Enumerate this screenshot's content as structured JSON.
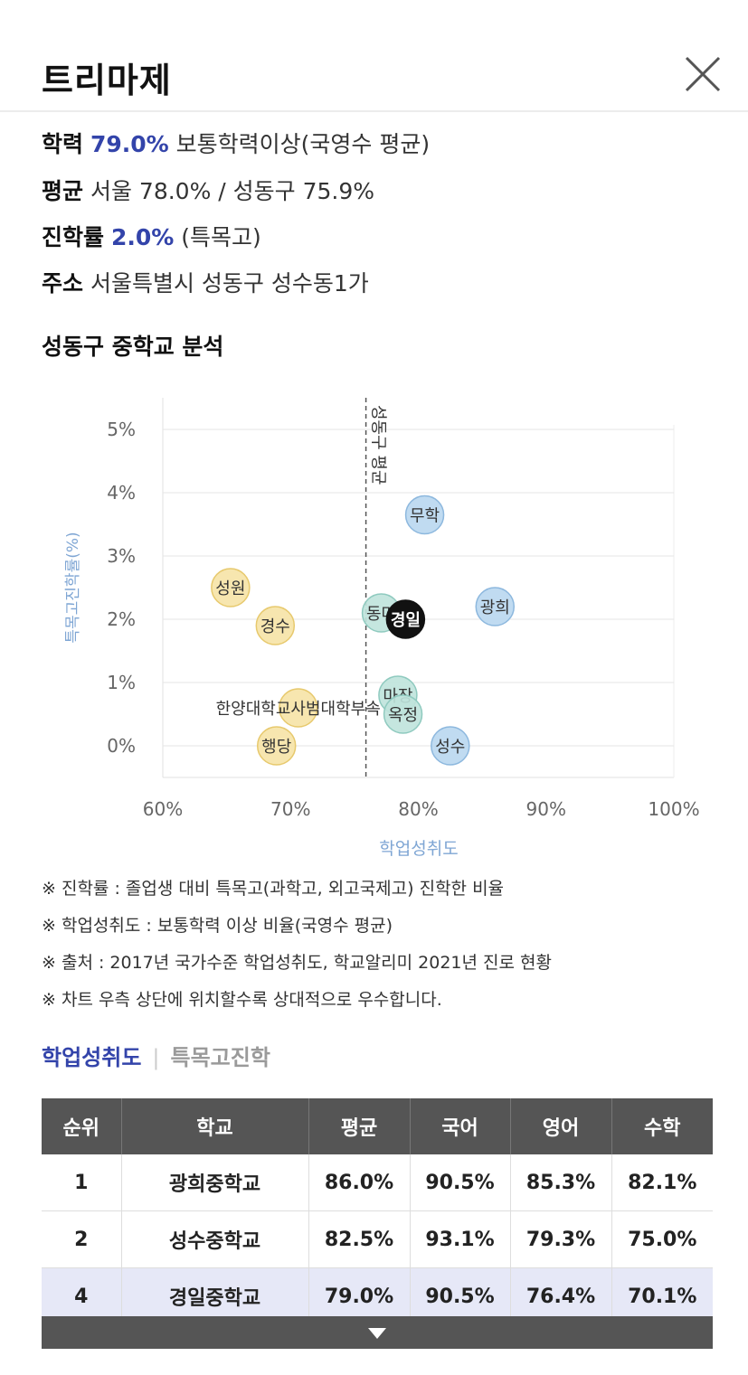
{
  "title": "트리마제",
  "info": {
    "achievement": {
      "label": "학력",
      "value": "79.0%",
      "note": "보통학력이상(국영수 평균)"
    },
    "average": {
      "label": "평균",
      "text": "서울 78.0% / 성동구 75.9%"
    },
    "advancement": {
      "label": "진학률",
      "value": "2.0%",
      "note": "(특목고)"
    },
    "address": {
      "label": "주소",
      "text": "서울특별시 성동구 성수동1가"
    }
  },
  "chart_section_title": "성동구 중학교 분석",
  "chart_data": {
    "type": "scatter",
    "xlabel": "학업성취도",
    "ylabel": "특목고진학률(%)",
    "xlim": [
      60,
      100
    ],
    "ylim": [
      -0.5,
      5.5
    ],
    "x_ticks": [
      "60%",
      "70%",
      "80%",
      "90%",
      "100%"
    ],
    "x_tick_values": [
      60,
      70,
      80,
      90,
      100
    ],
    "y_ticks": [
      "0%",
      "1%",
      "2%",
      "3%",
      "4%",
      "5%"
    ],
    "y_tick_values": [
      0,
      1,
      2,
      3,
      4,
      5
    ],
    "grid": true,
    "reference_line": {
      "x": 75.9,
      "label": "성동구 평균"
    },
    "points": [
      {
        "label": "무학",
        "x": 80.5,
        "y": 3.65,
        "group": "blue"
      },
      {
        "label": "성원",
        "x": 65.3,
        "y": 2.5,
        "group": "yellow"
      },
      {
        "label": "경수",
        "x": 68.8,
        "y": 1.9,
        "group": "yellow"
      },
      {
        "label": "동마",
        "x": 77.1,
        "y": 2.1,
        "group": "teal"
      },
      {
        "label": "경일",
        "x": 79.0,
        "y": 2.0,
        "group": "highlight"
      },
      {
        "label": "광희",
        "x": 86.0,
        "y": 2.2,
        "group": "blue"
      },
      {
        "label": "한양대학교사범대학부속",
        "x": 70.6,
        "y": 0.6,
        "group": "yellow"
      },
      {
        "label": "마장",
        "x": 78.4,
        "y": 0.8,
        "group": "teal"
      },
      {
        "label": "옥정",
        "x": 78.8,
        "y": 0.5,
        "group": "teal"
      },
      {
        "label": "행당",
        "x": 68.9,
        "y": 0.0,
        "group": "yellow"
      },
      {
        "label": "성수",
        "x": 82.5,
        "y": 0.0,
        "group": "blue"
      }
    ],
    "colors": {
      "blue": "#b9d7f0",
      "blue_stroke": "#8db8de",
      "yellow": "#f6e3a6",
      "yellow_stroke": "#e7c96d",
      "teal": "#bfe3dc",
      "teal_stroke": "#8fcabf",
      "highlight": "#111111",
      "axis_tick": "#666666",
      "axis_label": "#7fa6d4",
      "grid": "#e6e6e6",
      "ref_line": "#555555"
    }
  },
  "notes": [
    "※ 진학률 : 졸업생 대비 특목고(과학고, 외고국제고) 진학한 비율",
    "※ 학업성취도 : 보통학력 이상 비율(국영수 평균)",
    "※ 출처 : 2017년 국가수준 학업성취도, 학교알리미 2021년 진로 현황",
    "※ 차트 우측 상단에 위치할수록 상대적으로 우수합니다."
  ],
  "tabs": {
    "active": "학업성취도",
    "separator": "|",
    "inactive": "특목고진학"
  },
  "table": {
    "headers": [
      "순위",
      "학교",
      "평균",
      "국어",
      "영어",
      "수학"
    ],
    "rows": [
      [
        "1",
        "광희중학교",
        "86.0%",
        "90.5%",
        "85.3%",
        "82.1%"
      ],
      [
        "2",
        "성수중학교",
        "82.5%",
        "93.1%",
        "79.3%",
        "75.0%"
      ],
      [
        "4",
        "경일중학교",
        "79.0%",
        "90.5%",
        "76.4%",
        "70.1%"
      ]
    ]
  }
}
